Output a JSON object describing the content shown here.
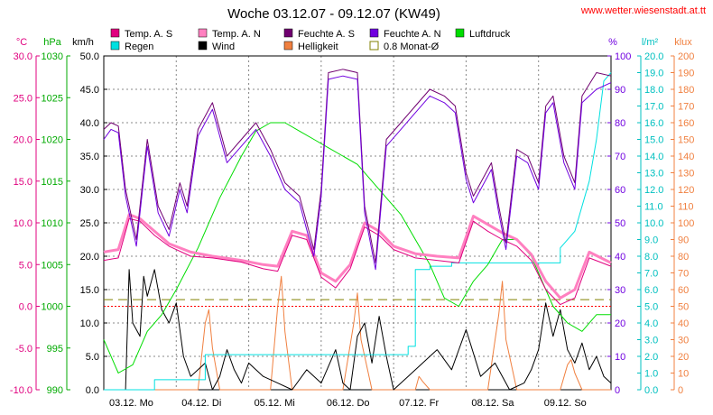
{
  "colors": {
    "temp_s": "#e0007f",
    "temp_n": "#ff80c0",
    "feuchte_s": "#700070",
    "feuchte_n": "#7000e0",
    "luftdruck": "#00dd00",
    "regen": "#00e0e0",
    "wind": "#000000",
    "helligkeit": "#f08040",
    "monat": "#808000",
    "zero_line": "#ff0000",
    "grid": "#888888",
    "url": "#ff0000",
    "title": "#000000"
  },
  "chart_data": {
    "type": "line",
    "title": "Woche 03.12.07 - 09.12.07 (KW49)",
    "source_url": "www.wetter.wiesenstadt.at.tt",
    "legend": [
      {
        "label": "Temp. A. S",
        "color": "#e0007f",
        "style": "box"
      },
      {
        "label": "Temp. A. N",
        "color": "#ff80c0",
        "style": "box"
      },
      {
        "label": "Feuchte A. S",
        "color": "#700070",
        "style": "box"
      },
      {
        "label": "Feuchte A. N",
        "color": "#7000e0",
        "style": "box"
      },
      {
        "label": "Luftdruck",
        "color": "#00dd00",
        "style": "box"
      },
      {
        "label": "Regen",
        "color": "#00e0e0",
        "style": "box"
      },
      {
        "label": "Wind",
        "color": "#000000",
        "style": "box"
      },
      {
        "label": "Helligkeit",
        "color": "#f08040",
        "style": "box"
      },
      {
        "label": "0.8 Monat-Ø",
        "color": "#808000",
        "style": "outline"
      }
    ],
    "axes_left": [
      {
        "unit": "°C",
        "color": "#e0007f",
        "min": -10,
        "max": 30,
        "ticks": [
          "30.0",
          "25.0",
          "20.0",
          "15.0",
          "10.0",
          "5.0",
          "0.0",
          "-5.0",
          "-10.0"
        ]
      },
      {
        "unit": "hPa",
        "color": "#00aa00",
        "min": 990,
        "max": 1030,
        "ticks": [
          "1030",
          "1025",
          "1020",
          "1015",
          "1010",
          "1005",
          "1000",
          "995",
          "990"
        ]
      },
      {
        "unit": "km/h",
        "color": "#000000",
        "min": 0,
        "max": 50,
        "ticks": [
          "50.0",
          "45.0",
          "40.0",
          "35.0",
          "30.0",
          "25.0",
          "20.0",
          "15.0",
          "10.0",
          "5.0",
          "0.0"
        ]
      }
    ],
    "axes_right": [
      {
        "unit": "%",
        "color": "#7000e0",
        "min": 0,
        "max": 100,
        "ticks": [
          "100",
          "90",
          "80",
          "70",
          "60",
          "50",
          "40",
          "30",
          "20",
          "10",
          "0"
        ]
      },
      {
        "unit": "l/m²",
        "color": "#00c0c0",
        "min": 0,
        "max": 20,
        "ticks": [
          "20.0",
          "19.0",
          "18.0",
          "17.0",
          "16.0",
          "15.0",
          "14.0",
          "13.0",
          "12.0",
          "11.0",
          "10.0",
          "9.0",
          "8.0",
          "7.0",
          "6.0",
          "5.0",
          "4.0",
          "3.0",
          "2.0",
          "1.0",
          "0.0"
        ]
      },
      {
        "unit": "klux",
        "color": "#f08040",
        "min": 0,
        "max": 200,
        "ticks": [
          "200",
          "190",
          "180",
          "170",
          "160",
          "150",
          "140",
          "130",
          "120",
          "110",
          "100",
          "90",
          "80",
          "70",
          "60",
          "50",
          "40",
          "30",
          "20",
          "10",
          "0"
        ]
      }
    ],
    "x_labels": [
      "03.12.  Mo",
      "04.12.  Di",
      "05.12.  Mi",
      "06.12.  Do",
      "07.12.  Fr",
      "08.12.  Sa",
      "09.12.  So"
    ],
    "x_range_days": [
      0,
      7
    ],
    "monat_avg_celsius": 0.8,
    "series": [
      {
        "name": "Temp. A. S",
        "axis": "°C",
        "color": "#e0007f",
        "width": 1,
        "x": [
          0,
          0.2,
          0.35,
          0.5,
          0.7,
          0.9,
          1.2,
          1.5,
          1.9,
          2.2,
          2.4,
          2.6,
          2.8,
          3.0,
          3.2,
          3.4,
          3.6,
          3.8,
          4.0,
          4.3,
          4.6,
          4.9,
          5.1,
          5.3,
          5.5,
          5.7,
          5.9,
          6.1,
          6.3,
          6.5,
          6.7,
          7.0
        ],
        "y": [
          5.5,
          5.8,
          10.5,
          10.2,
          8.5,
          7.2,
          6.0,
          5.8,
          5.3,
          4.5,
          4.2,
          8.5,
          8.0,
          3.5,
          2.2,
          4.5,
          9.5,
          8.5,
          6.8,
          5.8,
          5.5,
          5.2,
          10.2,
          9.0,
          8.0,
          7.2,
          5.5,
          2.0,
          0.2,
          1.0,
          5.8,
          4.8
        ]
      },
      {
        "name": "Temp. A. N",
        "axis": "°C",
        "color": "#ff80c0",
        "width": 3,
        "x": [
          0,
          0.2,
          0.35,
          0.5,
          0.7,
          0.9,
          1.2,
          1.5,
          1.9,
          2.2,
          2.4,
          2.6,
          2.8,
          3.0,
          3.2,
          3.4,
          3.6,
          3.8,
          4.0,
          4.3,
          4.6,
          4.9,
          5.1,
          5.3,
          5.5,
          5.7,
          5.9,
          6.1,
          6.3,
          6.5,
          6.7,
          7.0
        ],
        "y": [
          6.5,
          6.8,
          11.0,
          10.5,
          9.0,
          7.5,
          6.5,
          6.0,
          5.5,
          5.0,
          4.8,
          9.0,
          8.5,
          4.0,
          3.0,
          5.0,
          10.0,
          9.0,
          7.2,
          6.3,
          6.0,
          5.8,
          10.8,
          9.8,
          8.8,
          8.0,
          6.2,
          3.0,
          1.0,
          2.0,
          6.5,
          5.2
        ]
      },
      {
        "name": "Feuchte A. S",
        "axis": "%",
        "color": "#700070",
        "width": 1,
        "x": [
          0,
          0.1,
          0.2,
          0.3,
          0.45,
          0.6,
          0.75,
          0.9,
          1.05,
          1.15,
          1.3,
          1.5,
          1.7,
          1.9,
          2.1,
          2.3,
          2.5,
          2.7,
          2.9,
          3.0,
          3.1,
          3.3,
          3.5,
          3.6,
          3.75,
          3.9,
          4.1,
          4.3,
          4.5,
          4.7,
          4.85,
          5.0,
          5.1,
          5.2,
          5.35,
          5.45,
          5.55,
          5.7,
          5.85,
          6.0,
          6.1,
          6.2,
          6.35,
          6.5,
          6.6,
          6.8,
          7.0
        ],
        "y": [
          78,
          80,
          79,
          60,
          45,
          75,
          55,
          48,
          62,
          55,
          78,
          86,
          70,
          75,
          80,
          72,
          62,
          58,
          42,
          60,
          95,
          96,
          95,
          55,
          38,
          75,
          80,
          85,
          90,
          88,
          85,
          65,
          58,
          62,
          68,
          55,
          44,
          72,
          70,
          62,
          85,
          88,
          70,
          62,
          88,
          95,
          94
        ]
      },
      {
        "name": "Feuchte A. N",
        "axis": "%",
        "color": "#7000e0",
        "width": 1,
        "x": [
          0,
          0.1,
          0.2,
          0.3,
          0.45,
          0.6,
          0.75,
          0.9,
          1.05,
          1.15,
          1.3,
          1.5,
          1.7,
          1.9,
          2.1,
          2.3,
          2.5,
          2.7,
          2.9,
          3.0,
          3.1,
          3.3,
          3.5,
          3.6,
          3.75,
          3.9,
          4.1,
          4.3,
          4.5,
          4.7,
          4.85,
          5.0,
          5.1,
          5.2,
          5.35,
          5.45,
          5.55,
          5.7,
          5.85,
          6.0,
          6.1,
          6.2,
          6.35,
          6.5,
          6.6,
          6.8,
          7.0
        ],
        "y": [
          75,
          78,
          77,
          58,
          43,
          73,
          53,
          46,
          60,
          53,
          76,
          84,
          68,
          73,
          78,
          70,
          60,
          56,
          40,
          58,
          93,
          94,
          93,
          53,
          36,
          73,
          78,
          83,
          88,
          86,
          83,
          63,
          56,
          60,
          66,
          53,
          42,
          70,
          68,
          60,
          83,
          86,
          68,
          60,
          86,
          90,
          92
        ]
      },
      {
        "name": "Luftdruck",
        "axis": "hPa",
        "color": "#00dd00",
        "width": 1,
        "x": [
          0,
          0.2,
          0.4,
          0.6,
          0.8,
          1.0,
          1.3,
          1.6,
          1.9,
          2.1,
          2.3,
          2.5,
          2.7,
          2.9,
          3.1,
          3.3,
          3.5,
          3.7,
          3.9,
          4.1,
          4.3,
          4.5,
          4.7,
          4.9,
          5.1,
          5.3,
          5.5,
          5.7,
          5.9,
          6.0,
          6.1,
          6.2,
          6.4,
          6.6,
          6.8,
          7.0
        ],
        "y": [
          996,
          992,
          993,
          997,
          999,
          1002,
          1007,
          1013,
          1018,
          1021,
          1022,
          1022,
          1021,
          1020,
          1019,
          1018,
          1017,
          1015,
          1013,
          1011,
          1008,
          1005,
          1001,
          1000,
          1003,
          1005,
          1008,
          1008,
          1006,
          1004,
          1002,
          1000,
          998,
          997,
          999,
          999
        ]
      },
      {
        "name": "Regen",
        "axis": "l/m²",
        "color": "#00e0e0",
        "width": 1,
        "x": [
          0,
          0.7,
          0.7,
          1.4,
          1.4,
          4.2,
          4.2,
          4.3,
          4.3,
          4.5,
          4.5,
          4.8,
          4.8,
          5.5,
          5.5,
          6.3,
          6.3,
          6.5,
          6.7,
          6.8,
          6.9,
          7.0
        ],
        "y": [
          0,
          0,
          0.6,
          0.6,
          2.1,
          2.1,
          2.6,
          2.6,
          7.2,
          7.2,
          7.4,
          7.4,
          7.6,
          7.6,
          7.6,
          7.6,
          8.5,
          9.5,
          12.5,
          15.0,
          18.5,
          19.0
        ]
      },
      {
        "name": "Wind",
        "axis": "km/h",
        "color": "#000000",
        "width": 1,
        "x": [
          0,
          0.3,
          0.35,
          0.4,
          0.5,
          0.55,
          0.6,
          0.7,
          0.8,
          0.9,
          1.0,
          1.1,
          1.2,
          1.4,
          1.5,
          1.6,
          1.7,
          1.8,
          1.9,
          2.0,
          2.2,
          2.4,
          2.6,
          2.8,
          3.0,
          3.2,
          3.3,
          3.4,
          3.5,
          3.6,
          3.7,
          3.8,
          3.9,
          4.0,
          4.2,
          4.4,
          4.6,
          4.8,
          5.0,
          5.2,
          5.4,
          5.6,
          5.8,
          5.9,
          6.0,
          6.1,
          6.2,
          6.3,
          6.4,
          6.5,
          6.6,
          6.7,
          6.8,
          6.9,
          7.0
        ],
        "y": [
          0,
          0,
          18,
          10,
          8,
          17,
          14,
          18,
          12,
          10,
          13,
          5,
          2,
          4,
          0,
          2,
          6,
          3,
          1,
          4,
          2,
          1,
          0,
          3,
          1,
          6,
          1,
          0,
          8,
          10,
          4,
          11,
          5,
          0,
          2,
          4,
          6,
          3,
          9,
          2,
          4,
          0,
          1,
          3,
          6,
          13,
          8,
          12,
          6,
          4,
          7,
          3,
          5,
          2,
          1
        ]
      },
      {
        "name": "Helligkeit",
        "axis": "klux",
        "color": "#f08040",
        "width": 1,
        "x": [
          0,
          1.3,
          1.4,
          1.45,
          1.5,
          1.6,
          2.3,
          2.4,
          2.45,
          2.5,
          2.6,
          3.3,
          3.45,
          3.5,
          3.55,
          3.7,
          4.3,
          4.35,
          4.4,
          4.5,
          5.3,
          5.45,
          5.5,
          5.55,
          5.7,
          6.3,
          6.4,
          6.45,
          6.5,
          6.6,
          7.0
        ],
        "y": [
          0,
          0,
          40,
          48,
          25,
          0,
          0,
          50,
          68,
          35,
          0,
          0,
          40,
          58,
          30,
          0,
          0,
          8,
          5,
          0,
          0,
          45,
          65,
          30,
          0,
          0,
          15,
          18,
          10,
          0,
          0
        ]
      }
    ]
  }
}
